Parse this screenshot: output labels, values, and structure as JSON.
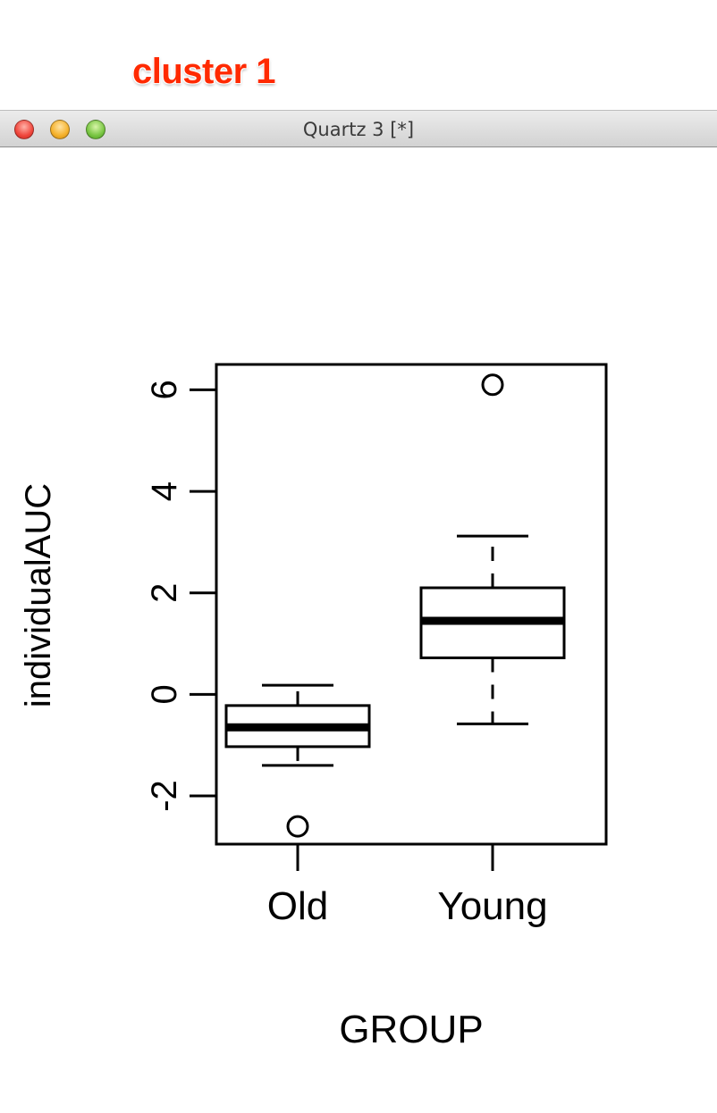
{
  "annotation": "cluster 1",
  "window": {
    "title": "Quartz 3 [*]"
  },
  "chart_data": {
    "type": "box",
    "title": "",
    "xlabel": "GROUP",
    "ylabel": "individualAUC",
    "ylim": [
      -2.95,
      6.5
    ],
    "yticks": [
      -2,
      0,
      2,
      4,
      6
    ],
    "ytick_labels": [
      "-2",
      "0",
      "2",
      "4",
      "6"
    ],
    "categories": [
      "Old",
      "Young"
    ],
    "boxes": [
      {
        "name": "Old",
        "whisker_low": -1.4,
        "q1": -1.03,
        "median": -0.65,
        "q3": -0.22,
        "whisker_high": 0.18,
        "outliers": [
          -2.6
        ]
      },
      {
        "name": "Young",
        "whisker_low": -0.58,
        "q1": 0.72,
        "median": 1.45,
        "q3": 2.1,
        "whisker_high": 3.12,
        "outliers": [
          6.1
        ]
      }
    ],
    "grid": false,
    "legend": "none"
  }
}
